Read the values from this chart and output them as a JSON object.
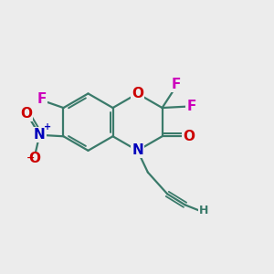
{
  "bg_color": "#ececec",
  "bond_color": "#3a7a6a",
  "colors": {
    "O": "#cc0000",
    "N": "#0000bb",
    "F": "#cc00bb",
    "H": "#3a7a6a"
  },
  "bond_lw": 1.6,
  "dbo": 0.1,
  "fs_main": 11,
  "fs_small": 9,
  "fs_charge": 7
}
